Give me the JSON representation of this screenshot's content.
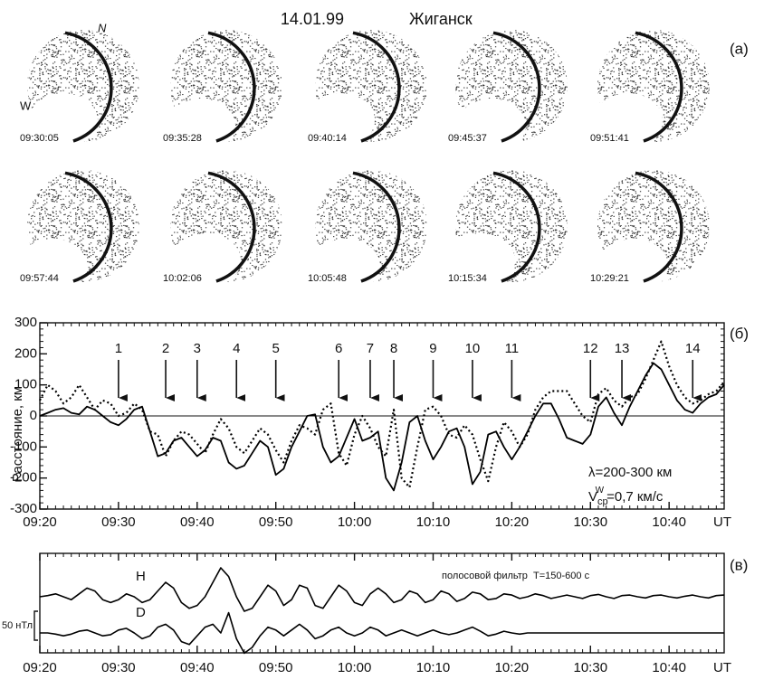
{
  "header": {
    "date": "14.01.99",
    "place": "Жиганск"
  },
  "panel_a": {
    "label": "(а)",
    "north": "N",
    "west": "W",
    "frames": [
      "09:30:05",
      "09:35:28",
      "09:40:14",
      "09:45:37",
      "09:51:41",
      "09:57:44",
      "10:02:06",
      "10:05:48",
      "10:15:34",
      "10:29:21"
    ]
  },
  "chart_data": [
    {
      "type": "line",
      "label": "(б)",
      "ylabel": "Расстояние, км",
      "xlabel": "UT",
      "x": [
        "09:20",
        "09:21",
        "09:22",
        "09:23",
        "09:24",
        "09:25",
        "09:26",
        "09:27",
        "09:28",
        "09:29",
        "09:30",
        "09:31",
        "09:32",
        "09:33",
        "09:34",
        "09:35",
        "09:36",
        "09:37",
        "09:38",
        "09:39",
        "09:40",
        "09:41",
        "09:42",
        "09:43",
        "09:44",
        "09:45",
        "09:46",
        "09:47",
        "09:48",
        "09:49",
        "09:50",
        "09:51",
        "09:52",
        "09:53",
        "09:54",
        "09:55",
        "09:56",
        "09:57",
        "09:58",
        "09:59",
        "10:00",
        "10:01",
        "10:02",
        "10:03",
        "10:04",
        "10:05",
        "10:06",
        "10:07",
        "10:08",
        "10:09",
        "10:10",
        "10:11",
        "10:12",
        "10:13",
        "10:14",
        "10:15",
        "10:16",
        "10:17",
        "10:18",
        "10:19",
        "10:20",
        "10:21",
        "10:22",
        "10:23",
        "10:24",
        "10:25",
        "10:26",
        "10:27",
        "10:28",
        "10:29",
        "10:30",
        "10:31",
        "10:32",
        "10:33",
        "10:34",
        "10:35",
        "10:36",
        "10:37",
        "10:38",
        "10:39",
        "10:40",
        "10:41",
        "10:42",
        "10:43",
        "10:44",
        "10:45",
        "10:46",
        "10:47"
      ],
      "xlim": [
        "09:20",
        "10:47"
      ],
      "xticks": [
        "09:20",
        "09:30",
        "09:40",
        "09:50",
        "10:00",
        "10:10",
        "10:20",
        "10:30",
        "10:40"
      ],
      "ylim": [
        -300,
        300
      ],
      "yticks": [
        -300,
        -200,
        -100,
        0,
        100,
        200,
        300
      ],
      "zero_line": true,
      "series": [
        {
          "color": "#000000",
          "dash": "solid",
          "values": [
            0,
            10,
            20,
            25,
            10,
            5,
            30,
            20,
            0,
            -20,
            -30,
            -10,
            20,
            30,
            -50,
            -130,
            -120,
            -80,
            -70,
            -100,
            -130,
            -110,
            -70,
            -80,
            -150,
            -170,
            -160,
            -120,
            -80,
            -100,
            -190,
            -170,
            -100,
            -50,
            0,
            5,
            -100,
            -150,
            -130,
            -70,
            -10,
            -80,
            -70,
            -50,
            -200,
            -240,
            -150,
            -20,
            0,
            -80,
            -140,
            -100,
            -50,
            -40,
            -100,
            -220,
            -180,
            -60,
            -50,
            -100,
            -140,
            -100,
            -50,
            0,
            40,
            40,
            -10,
            -70,
            -80,
            -90,
            -60,
            30,
            60,
            10,
            -30,
            30,
            80,
            130,
            170,
            150,
            100,
            50,
            20,
            10,
            40,
            60,
            70,
            100
          ]
        },
        {
          "color": "#000000",
          "dash": "dotted",
          "values": [
            50,
            100,
            80,
            40,
            60,
            100,
            60,
            20,
            50,
            40,
            0,
            10,
            40,
            20,
            -50,
            -60,
            -130,
            -80,
            -50,
            -60,
            -90,
            -120,
            -60,
            -10,
            -40,
            -100,
            -120,
            -80,
            -40,
            -60,
            -110,
            -150,
            -80,
            -30,
            -40,
            -60,
            20,
            40,
            -120,
            -160,
            -60,
            0,
            -40,
            -100,
            -130,
            20,
            -200,
            -230,
            -100,
            20,
            30,
            0,
            -60,
            -70,
            -30,
            -60,
            -140,
            -210,
            -100,
            -20,
            -50,
            -100,
            -60,
            20,
            60,
            80,
            80,
            80,
            40,
            0,
            -20,
            70,
            90,
            50,
            30,
            60,
            70,
            120,
            180,
            240,
            160,
            100,
            60,
            40,
            50,
            70,
            80,
            110
          ]
        }
      ],
      "arrows": [
        {
          "label": "1",
          "x": "09:30"
        },
        {
          "label": "2",
          "x": "09:36"
        },
        {
          "label": "3",
          "x": "09:40"
        },
        {
          "label": "4",
          "x": "09:45"
        },
        {
          "label": "5",
          "x": "09:50"
        },
        {
          "label": "6",
          "x": "09:58"
        },
        {
          "label": "7",
          "x": "10:02"
        },
        {
          "label": "8",
          "x": "10:05"
        },
        {
          "label": "9",
          "x": "10:10"
        },
        {
          "label": "10",
          "x": "10:15"
        },
        {
          "label": "11",
          "x": "10:20"
        },
        {
          "label": "12",
          "x": "10:30"
        },
        {
          "label": "13",
          "x": "10:34"
        },
        {
          "label": "14",
          "x": "10:43"
        }
      ],
      "wavelength": "λ=200-300 км",
      "velocity": {
        "symbol": "V",
        "sub": "ср",
        "sup": "W",
        "rest": "=0,7 км/с"
      }
    },
    {
      "type": "line",
      "label": "(в)",
      "xlabel": "UT",
      "note": "полосовой фильтр  T=150-600 с",
      "x": [
        "09:20",
        "09:21",
        "09:22",
        "09:23",
        "09:24",
        "09:25",
        "09:26",
        "09:27",
        "09:28",
        "09:29",
        "09:30",
        "09:31",
        "09:32",
        "09:33",
        "09:34",
        "09:35",
        "09:36",
        "09:37",
        "09:38",
        "09:39",
        "09:40",
        "09:41",
        "09:42",
        "09:43",
        "09:44",
        "09:45",
        "09:46",
        "09:47",
        "09:48",
        "09:49",
        "09:50",
        "09:51",
        "09:52",
        "09:53",
        "09:54",
        "09:55",
        "09:56",
        "09:57",
        "09:58",
        "09:59",
        "10:00",
        "10:01",
        "10:02",
        "10:03",
        "10:04",
        "10:05",
        "10:06",
        "10:07",
        "10:08",
        "10:09",
        "10:10",
        "10:11",
        "10:12",
        "10:13",
        "10:14",
        "10:15",
        "10:16",
        "10:17",
        "10:18",
        "10:19",
        "10:20",
        "10:21",
        "10:22",
        "10:23",
        "10:24",
        "10:25",
        "10:26",
        "10:27",
        "10:28",
        "10:29",
        "10:30",
        "10:31",
        "10:32",
        "10:33",
        "10:34",
        "10:35",
        "10:36",
        "10:37",
        "10:38",
        "10:39",
        "10:40",
        "10:41",
        "10:42",
        "10:43",
        "10:44",
        "10:45",
        "10:46",
        "10:47"
      ],
      "xlim": [
        "09:20",
        "10:47"
      ],
      "xticks": [
        "09:20",
        "09:30",
        "09:40",
        "09:50",
        "10:00",
        "10:10",
        "10:20",
        "10:30",
        "10:40"
      ],
      "scale_bar": {
        "value": 50,
        "label": "50 нТл"
      },
      "series": [
        {
          "name": "H",
          "color": "#000000",
          "values": [
            0,
            2,
            5,
            0,
            -5,
            5,
            15,
            10,
            -5,
            -10,
            -5,
            5,
            0,
            -10,
            -5,
            10,
            25,
            15,
            -10,
            -20,
            -15,
            0,
            25,
            50,
            35,
            0,
            -25,
            -20,
            0,
            20,
            10,
            -15,
            -5,
            20,
            15,
            -15,
            -20,
            0,
            20,
            10,
            -10,
            -15,
            5,
            15,
            5,
            -10,
            -5,
            10,
            5,
            -10,
            -5,
            10,
            5,
            -8,
            -3,
            8,
            5,
            -5,
            -3,
            5,
            3,
            -3,
            0,
            5,
            2,
            -3,
            0,
            3,
            0,
            -3,
            2,
            4,
            0,
            -3,
            2,
            3,
            0,
            -2,
            2,
            3,
            0,
            -2,
            1,
            3,
            0,
            -2,
            2,
            3
          ]
        },
        {
          "name": "D",
          "color": "#000000",
          "values": [
            0,
            0,
            -2,
            -5,
            -2,
            3,
            5,
            0,
            -5,
            -3,
            5,
            8,
            0,
            -10,
            -5,
            10,
            15,
            5,
            -15,
            -20,
            -5,
            10,
            15,
            0,
            35,
            -10,
            -35,
            -25,
            -5,
            10,
            5,
            -5,
            5,
            15,
            5,
            -10,
            -5,
            5,
            10,
            0,
            -5,
            0,
            10,
            5,
            -5,
            0,
            5,
            0,
            -5,
            0,
            5,
            0,
            -3,
            0,
            5,
            10,
            3,
            -5,
            -2,
            3,
            0,
            -2,
            0,
            0,
            0,
            0,
            0,
            0,
            0,
            0,
            0,
            0,
            0,
            0,
            0,
            0,
            0,
            0,
            0,
            0,
            0,
            0,
            0,
            0,
            0,
            0,
            0,
            0
          ]
        }
      ]
    }
  ]
}
